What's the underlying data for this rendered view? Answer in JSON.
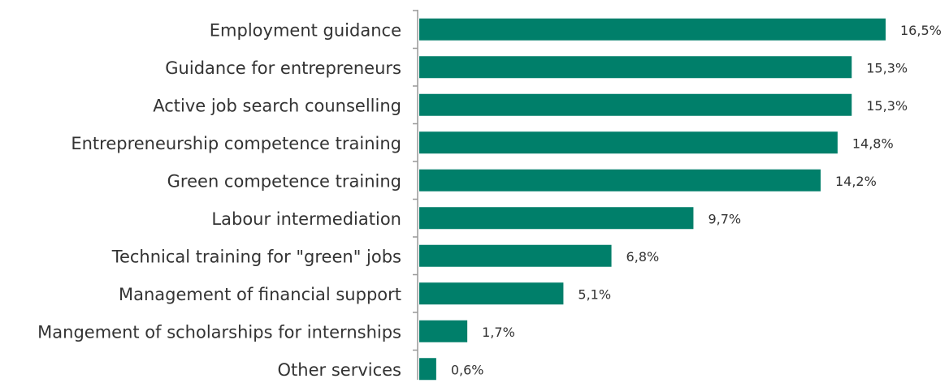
{
  "chart_data": {
    "type": "bar",
    "orientation": "horizontal",
    "categories": [
      "Employment guidance",
      "Guidance for entrepreneurs",
      "Active job search counselling",
      "Entrepreneurship competence training",
      "Green competence training",
      "Labour intermediation",
      "Technical training for \"green\" jobs",
      "Management of financial support",
      "Mangement of scholarships for internships",
      "Other services"
    ],
    "values": [
      16.5,
      15.3,
      15.3,
      14.8,
      14.2,
      9.7,
      6.8,
      5.1,
      1.7,
      0.6
    ],
    "value_labels": [
      "16,5%",
      "15,3%",
      "15,3%",
      "14,8%",
      "14,2%",
      "9,7%",
      "6,8%",
      "5,1%",
      "1,7%",
      "0,6%"
    ],
    "color": "#007f6a"
  }
}
